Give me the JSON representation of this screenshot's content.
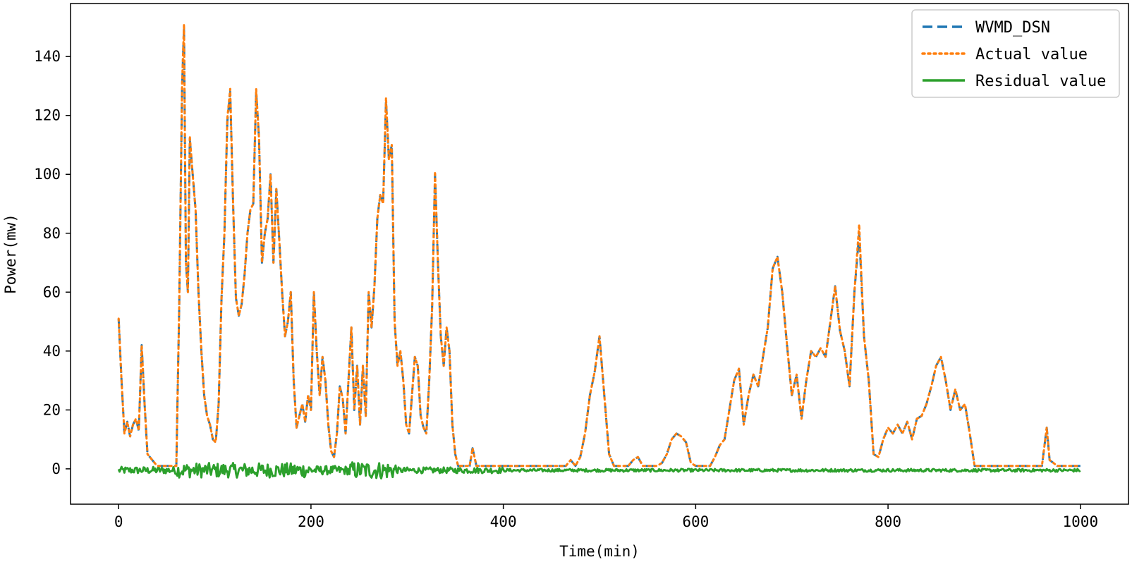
{
  "chart_data": {
    "type": "line",
    "title": "",
    "xlabel": "Time(min)",
    "ylabel": "Power(mw)",
    "xlim": [
      -50,
      1050
    ],
    "ylim": [
      -12,
      158
    ],
    "xticks": [
      0,
      200,
      400,
      600,
      800,
      1000
    ],
    "yticks": [
      0,
      20,
      40,
      60,
      80,
      100,
      120,
      140
    ],
    "grid": false,
    "legend_position": "top-right",
    "colors": {
      "WVMD_DSN": "#1f77b4",
      "Actual value": "#ff7f0e",
      "Residual value": "#2ca02c"
    },
    "series": [
      {
        "name": "WVMD_DSN",
        "style": "dashed",
        "x": [
          0,
          3,
          6,
          9,
          12,
          15,
          18,
          21,
          24,
          27,
          30,
          35,
          40,
          45,
          50,
          55,
          60,
          63,
          66,
          68,
          70,
          72,
          74,
          77,
          80,
          83,
          86,
          89,
          92,
          95,
          98,
          101,
          104,
          107,
          110,
          113,
          116,
          119,
          122,
          125,
          128,
          131,
          134,
          137,
          140,
          143,
          146,
          149,
          152,
          155,
          158,
          161,
          164,
          167,
          170,
          173,
          176,
          179,
          182,
          185,
          188,
          191,
          194,
          197,
          200,
          203,
          206,
          209,
          212,
          215,
          218,
          221,
          224,
          227,
          230,
          233,
          236,
          239,
          242,
          245,
          248,
          251,
          254,
          257,
          260,
          263,
          266,
          269,
          272,
          275,
          278,
          281,
          284,
          287,
          290,
          293,
          296,
          299,
          302,
          305,
          308,
          311,
          314,
          317,
          320,
          323,
          326,
          329,
          332,
          335,
          338,
          341,
          344,
          347,
          350,
          353,
          356,
          360,
          365,
          368,
          372,
          380,
          390,
          400,
          410,
          420,
          430,
          440,
          450,
          460,
          465,
          470,
          475,
          480,
          485,
          490,
          495,
          500,
          505,
          510,
          515,
          520,
          525,
          530,
          535,
          540,
          545,
          550,
          555,
          560,
          565,
          570,
          575,
          580,
          585,
          590,
          595,
          600,
          605,
          610,
          615,
          620,
          625,
          630,
          635,
          640,
          645,
          650,
          655,
          660,
          665,
          670,
          675,
          680,
          685,
          690,
          695,
          700,
          705,
          710,
          715,
          720,
          725,
          730,
          735,
          740,
          745,
          750,
          755,
          760,
          765,
          770,
          775,
          780,
          785,
          790,
          795,
          800,
          805,
          810,
          815,
          820,
          825,
          830,
          835,
          840,
          845,
          850,
          855,
          860,
          865,
          870,
          875,
          880,
          885,
          890,
          900,
          910,
          920,
          930,
          940,
          950,
          955,
          960,
          965,
          968,
          972,
          976,
          980,
          990,
          1000
        ],
        "y": [
          51,
          30,
          12,
          16,
          11,
          15,
          17,
          13,
          42,
          22,
          5,
          3,
          1,
          1,
          1,
          1,
          1,
          55,
          130,
          150,
          70,
          60,
          112,
          100,
          88,
          60,
          40,
          25,
          18,
          15,
          10,
          9,
          22,
          58,
          80,
          118,
          128,
          90,
          58,
          52,
          56,
          66,
          80,
          88,
          90,
          128,
          112,
          70,
          80,
          85,
          100,
          70,
          95,
          78,
          60,
          45,
          50,
          60,
          30,
          14,
          18,
          22,
          16,
          25,
          20,
          60,
          40,
          25,
          38,
          30,
          15,
          6,
          4,
          12,
          28,
          24,
          12,
          30,
          48,
          20,
          35,
          15,
          35,
          18,
          60,
          48,
          62,
          85,
          93,
          90,
          125,
          105,
          110,
          50,
          35,
          40,
          30,
          15,
          12,
          25,
          38,
          35,
          18,
          14,
          12,
          30,
          55,
          100,
          70,
          45,
          35,
          48,
          40,
          15,
          5,
          1,
          1,
          1,
          1,
          7,
          1,
          1,
          1,
          1,
          1,
          1,
          1,
          1,
          1,
          1,
          1,
          3,
          1,
          4,
          12,
          25,
          33,
          45,
          25,
          5,
          1,
          1,
          1,
          1,
          3,
          4,
          1,
          1,
          1,
          1,
          2,
          5,
          10,
          12,
          11,
          9,
          2,
          1,
          1,
          1,
          1,
          4,
          8,
          10,
          20,
          30,
          34,
          15,
          25,
          32,
          28,
          38,
          48,
          68,
          72,
          60,
          42,
          25,
          32,
          17,
          30,
          40,
          38,
          41,
          38,
          50,
          62,
          47,
          40,
          28,
          60,
          80,
          45,
          30,
          5,
          4,
          10,
          14,
          12,
          15,
          12,
          16,
          10,
          17,
          18,
          22,
          28,
          35,
          38,
          30,
          20,
          27,
          20,
          22,
          12,
          1,
          1,
          1,
          1,
          1,
          1,
          1,
          1,
          1,
          14,
          3,
          2,
          1,
          1,
          1,
          1
        ]
      },
      {
        "name": "Actual value",
        "style": "dotted",
        "x": [
          0,
          3,
          6,
          9,
          12,
          15,
          18,
          21,
          24,
          27,
          30,
          35,
          40,
          45,
          50,
          55,
          60,
          63,
          66,
          68,
          70,
          72,
          74,
          77,
          80,
          83,
          86,
          89,
          92,
          95,
          98,
          101,
          104,
          107,
          110,
          113,
          116,
          119,
          122,
          125,
          128,
          131,
          134,
          137,
          140,
          143,
          146,
          149,
          152,
          155,
          158,
          161,
          164,
          167,
          170,
          173,
          176,
          179,
          182,
          185,
          188,
          191,
          194,
          197,
          200,
          203,
          206,
          209,
          212,
          215,
          218,
          221,
          224,
          227,
          230,
          233,
          236,
          239,
          242,
          245,
          248,
          251,
          254,
          257,
          260,
          263,
          266,
          269,
          272,
          275,
          278,
          281,
          284,
          287,
          290,
          293,
          296,
          299,
          302,
          305,
          308,
          311,
          314,
          317,
          320,
          323,
          326,
          329,
          332,
          335,
          338,
          341,
          344,
          347,
          350,
          353,
          356,
          360,
          365,
          368,
          372,
          380,
          390,
          400,
          410,
          420,
          430,
          440,
          450,
          460,
          465,
          470,
          475,
          480,
          485,
          490,
          495,
          500,
          505,
          510,
          515,
          520,
          525,
          530,
          535,
          540,
          545,
          550,
          555,
          560,
          565,
          570,
          575,
          580,
          585,
          590,
          595,
          600,
          605,
          610,
          615,
          620,
          625,
          630,
          635,
          640,
          645,
          650,
          655,
          660,
          665,
          670,
          675,
          680,
          685,
          690,
          695,
          700,
          705,
          710,
          715,
          720,
          725,
          730,
          735,
          740,
          745,
          750,
          755,
          760,
          765,
          770,
          775,
          780,
          785,
          790,
          795,
          800,
          805,
          810,
          815,
          820,
          825,
          830,
          835,
          840,
          845,
          850,
          855,
          860,
          865,
          870,
          875,
          880,
          885,
          890,
          900,
          910,
          920,
          930,
          940,
          950,
          955,
          960,
          965,
          968,
          972,
          976,
          980,
          990,
          1000
        ],
        "y": [
          51,
          30,
          12,
          16,
          11,
          15,
          17,
          13,
          42,
          22,
          5,
          3,
          1,
          1,
          1,
          1,
          1,
          55,
          131,
          151,
          70,
          60,
          113,
          100,
          88,
          60,
          40,
          25,
          18,
          15,
          10,
          9,
          22,
          58,
          80,
          119,
          129,
          90,
          58,
          52,
          56,
          66,
          80,
          88,
          90,
          129,
          112,
          70,
          80,
          85,
          100,
          70,
          95,
          78,
          60,
          45,
          50,
          60,
          30,
          14,
          18,
          22,
          16,
          25,
          20,
          60,
          40,
          25,
          38,
          30,
          15,
          6,
          4,
          12,
          28,
          24,
          12,
          30,
          48,
          20,
          35,
          15,
          35,
          18,
          60,
          48,
          62,
          85,
          93,
          90,
          126,
          105,
          110,
          50,
          35,
          40,
          30,
          15,
          12,
          25,
          38,
          35,
          18,
          14,
          12,
          30,
          55,
          101,
          70,
          45,
          35,
          48,
          40,
          15,
          5,
          1,
          1,
          1,
          1,
          7,
          1,
          1,
          1,
          1,
          1,
          1,
          1,
          1,
          1,
          1,
          1,
          3,
          1,
          4,
          12,
          25,
          33,
          45,
          25,
          5,
          1,
          1,
          1,
          1,
          3,
          4,
          1,
          1,
          1,
          1,
          2,
          5,
          10,
          12,
          11,
          9,
          2,
          1,
          1,
          1,
          1,
          4,
          8,
          10,
          20,
          30,
          34,
          15,
          25,
          32,
          28,
          38,
          48,
          68,
          72,
          60,
          42,
          25,
          32,
          17,
          30,
          40,
          38,
          41,
          38,
          50,
          62,
          47,
          40,
          28,
          60,
          83,
          45,
          30,
          5,
          4,
          10,
          14,
          12,
          15,
          12,
          16,
          10,
          17,
          18,
          22,
          28,
          35,
          38,
          30,
          20,
          27,
          20,
          22,
          12,
          1,
          1,
          1,
          1,
          1,
          1,
          1,
          1,
          1,
          14,
          3,
          2,
          1,
          1,
          1,
          1
        ]
      },
      {
        "name": "Residual value",
        "style": "solid",
        "x_start": 0,
        "x_end": 1000,
        "x_step": 1,
        "amplitude_profile": [
          {
            "x": [
              0,
              60
            ],
            "amp": 1.2
          },
          {
            "x": [
              60,
              200
            ],
            "amp": 2.5
          },
          {
            "x": [
              200,
              240
            ],
            "amp": 1.5
          },
          {
            "x": [
              240,
              290
            ],
            "amp": 3.0
          },
          {
            "x": [
              290,
              400
            ],
            "amp": 1.0
          },
          {
            "x": [
              400,
              1000
            ],
            "amp": 0.5
          }
        ],
        "offset": -0.5
      }
    ]
  }
}
